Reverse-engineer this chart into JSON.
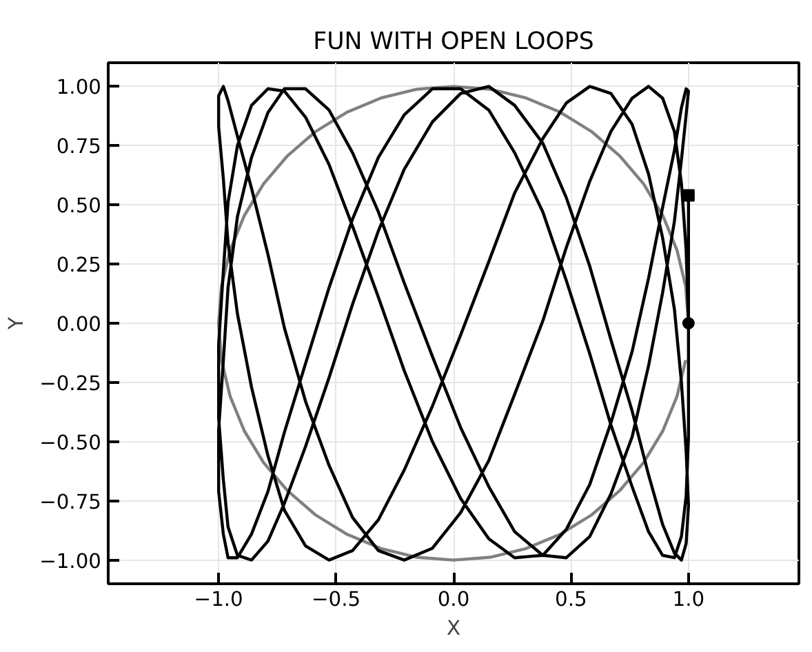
{
  "chart_data": {
    "type": "line",
    "title": "FUN WITH OPEN LOOPS",
    "xlabel": "X",
    "ylabel": "Y",
    "xlim": [
      -1.47,
      1.47
    ],
    "ylim": [
      -1.1,
      1.1
    ],
    "xticks": [
      {
        "value": -1,
        "label": "−1.0"
      },
      {
        "value": -0.5,
        "label": "−0.5"
      },
      {
        "value": 0,
        "label": "0.0"
      },
      {
        "value": 0.5,
        "label": "0.5"
      },
      {
        "value": 1,
        "label": "1.0"
      }
    ],
    "yticks": [
      {
        "value": -1,
        "label": "−1.00"
      },
      {
        "value": -0.75,
        "label": "−0.75"
      },
      {
        "value": -0.5,
        "label": "−0.50"
      },
      {
        "value": -0.25,
        "label": "−0.25"
      },
      {
        "value": 0,
        "label": "0.00"
      },
      {
        "value": 0.25,
        "label": "0.25"
      },
      {
        "value": 0.5,
        "label": "0.50"
      },
      {
        "value": 0.75,
        "label": "0.75"
      },
      {
        "value": 1,
        "label": "1.00"
      }
    ],
    "grid": true,
    "line_style": "solid",
    "marker": "none",
    "series": [
      {
        "color": "#808080",
        "x": [
          1.0,
          0.988,
          0.951,
          0.891,
          0.809,
          0.707,
          0.588,
          0.454,
          0.309,
          0.156,
          0.0,
          -0.156,
          -0.309,
          -0.454,
          -0.588,
          -0.707,
          -0.809,
          -0.891,
          -0.951,
          -0.988,
          -1.0,
          -0.988,
          -0.951,
          -0.891,
          -0.809,
          -0.707,
          -0.588,
          -0.454,
          -0.309,
          -0.156,
          0.0,
          0.156,
          0.309,
          0.454,
          0.588,
          0.707,
          0.809,
          0.891,
          0.951,
          0.988
        ],
        "values": [
          0.0,
          0.156,
          0.309,
          0.454,
          0.588,
          0.707,
          0.809,
          0.891,
          0.951,
          0.988,
          1.0,
          0.988,
          0.951,
          0.891,
          0.809,
          0.707,
          0.588,
          0.454,
          0.309,
          0.156,
          0.0,
          -0.156,
          -0.309,
          -0.454,
          -0.588,
          -0.707,
          -0.809,
          -0.891,
          -0.951,
          -0.988,
          -1.0,
          -0.988,
          -0.951,
          -0.891,
          -0.809,
          -0.707,
          -0.588,
          -0.454,
          -0.309,
          -0.156
        ]
      },
      {
        "color": "#000000",
        "x": [
          1.0,
          0.99,
          0.97,
          0.94,
          0.89,
          0.83,
          0.76,
          0.67,
          0.58,
          0.48,
          0.38,
          0.26,
          0.15,
          0.03,
          -0.09,
          -0.21,
          -0.32,
          -0.43,
          -0.53,
          -0.63,
          -0.72,
          -0.79,
          -0.86,
          -0.92,
          -0.96,
          -0.98,
          -1.0,
          -1.0,
          -0.98,
          -0.96,
          -0.92,
          -0.86,
          -0.79,
          -0.72,
          -0.63,
          -0.53,
          -0.43,
          -0.32,
          -0.21,
          -0.09,
          0.03,
          0.15,
          0.26,
          0.38,
          0.48,
          0.58,
          0.67,
          0.76,
          0.83,
          0.89,
          0.94,
          0.97,
          0.99,
          1.0,
          0.99,
          0.97,
          0.94,
          0.89,
          0.83,
          0.76,
          0.67,
          0.58,
          0.48,
          0.38,
          0.26,
          0.15,
          0.03,
          -0.09,
          -0.21,
          -0.32,
          -0.43,
          -0.53,
          -0.63,
          -0.72,
          -0.79,
          -0.86,
          -0.92,
          -0.96,
          -0.98,
          -1.0,
          -1.0,
          -0.98,
          -0.96,
          -0.92,
          -0.86,
          -0.79,
          -0.72,
          -0.63,
          -0.53,
          -0.43,
          -0.32,
          -0.21,
          -0.09,
          0.03,
          0.15,
          0.26,
          0.38,
          0.48,
          0.58,
          0.67,
          0.76,
          0.83,
          0.89,
          0.94,
          0.97,
          0.99,
          1.0,
          0.99,
          0.97,
          0.94,
          0.89,
          0.83,
          0.76,
          0.67,
          0.58,
          0.48,
          0.38,
          0.26,
          0.15,
          0.03,
          -0.09,
          -0.21,
          -0.32,
          -0.43,
          -0.53,
          -0.63,
          -0.72,
          -0.79,
          -0.86,
          -0.92,
          -0.96,
          -0.98,
          -1.0,
          -1.0,
          -0.98,
          -0.96,
          -0.92,
          -0.86,
          -0.79,
          -0.72,
          -0.63,
          -0.53,
          -0.43,
          -0.32,
          -0.21,
          -0.09,
          0.03,
          0.15,
          0.26,
          0.38,
          0.48,
          0.58,
          0.67,
          0.76,
          0.83,
          0.89,
          0.94,
          0.97,
          0.99,
          1.0,
          1.0
        ],
        "values": [
          0.0,
          0.31,
          0.59,
          0.81,
          0.95,
          1.0,
          0.95,
          0.81,
          0.6,
          0.32,
          0.01,
          -0.3,
          -0.58,
          -0.8,
          -0.95,
          -1.0,
          -0.96,
          -0.82,
          -0.6,
          -0.33,
          -0.02,
          0.29,
          0.57,
          0.79,
          0.94,
          1.0,
          0.96,
          0.83,
          0.61,
          0.34,
          0.04,
          -0.27,
          -0.56,
          -0.79,
          -0.94,
          -1.0,
          -0.96,
          -0.83,
          -0.62,
          -0.35,
          -0.05,
          0.26,
          0.55,
          0.78,
          0.93,
          1.0,
          0.97,
          0.84,
          0.63,
          0.36,
          0.06,
          -0.25,
          -0.54,
          -0.77,
          -0.93,
          -1.0,
          -0.97,
          -0.85,
          -0.64,
          -0.37,
          -0.07,
          0.24,
          0.53,
          0.76,
          0.92,
          1.0,
          0.97,
          0.85,
          0.65,
          0.39,
          0.08,
          -0.23,
          -0.52,
          -0.76,
          -0.92,
          -1.0,
          -0.98,
          -0.86,
          -0.66,
          -0.4,
          -0.09,
          0.22,
          0.51,
          0.75,
          0.92,
          0.99,
          0.98,
          0.87,
          0.67,
          0.41,
          0.11,
          -0.2,
          -0.5,
          -0.74,
          -0.91,
          -0.99,
          -0.98,
          -0.87,
          -0.68,
          -0.42,
          -0.12,
          0.19,
          0.49,
          0.73,
          0.91,
          0.99,
          0.98,
          0.88,
          0.69,
          0.43,
          0.13,
          -0.18,
          -0.48,
          -0.72,
          -0.9,
          -0.99,
          -0.98,
          -0.88,
          -0.69,
          -0.44,
          -0.14,
          0.17,
          0.47,
          0.72,
          0.9,
          0.99,
          0.99,
          0.89,
          0.7,
          0.45,
          0.15,
          -0.16,
          -0.45,
          -0.71,
          -0.89,
          -0.99,
          -0.99,
          -0.89,
          -0.71,
          -0.46,
          -0.17,
          0.15,
          0.44,
          0.7,
          0.88,
          0.99,
          0.99,
          0.9,
          0.72,
          0.47,
          0.18,
          -0.13,
          -0.43,
          -0.69,
          -0.88,
          -0.98,
          -0.99,
          -0.9,
          -0.73,
          -0.48,
          0.54
        ]
      },
      {
        "type": "scatter",
        "marker": "circle",
        "color": "#000000",
        "x": [
          1.0
        ],
        "values": [
          0.0
        ]
      },
      {
        "type": "scatter",
        "marker": "square",
        "color": "#000000",
        "x": [
          1.0
        ],
        "values": [
          0.54
        ]
      }
    ]
  }
}
